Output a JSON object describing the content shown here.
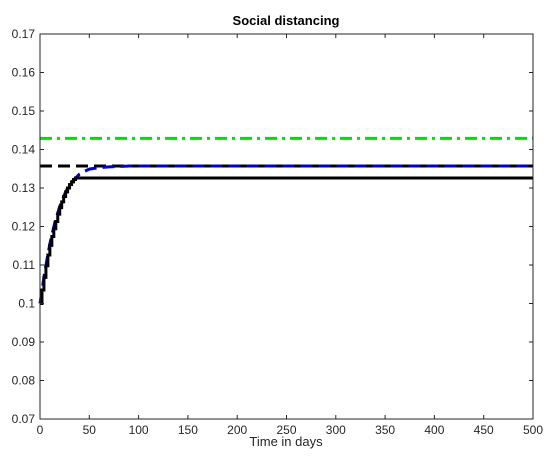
{
  "chart_data": {
    "type": "line",
    "title": "Social distancing",
    "xlabel": "Time in days",
    "ylabel": "",
    "xlim": [
      0,
      500
    ],
    "ylim": [
      0.07,
      0.17
    ],
    "xticks": [
      0,
      50,
      100,
      150,
      200,
      250,
      300,
      350,
      400,
      450,
      500
    ],
    "yticks": [
      0.07,
      0.08,
      0.09,
      0.1,
      0.11,
      0.12,
      0.13,
      0.14,
      0.15,
      0.16,
      0.17
    ],
    "xtick_labels": [
      "0",
      "50",
      "100",
      "150",
      "200",
      "250",
      "300",
      "350",
      "400",
      "450",
      "500"
    ],
    "ytick_labels": [
      "0.07",
      "0.08",
      "0.09",
      "0.1",
      "0.11",
      "0.12",
      "0.13",
      "0.14",
      "0.15",
      "0.16",
      "0.17"
    ],
    "grid": false,
    "legend": "none",
    "series": [
      {
        "color": "#00e000",
        "style": "dash-dot",
        "x": [
          0,
          500
        ],
        "y": [
          0.1429,
          0.1429
        ]
      },
      {
        "color": "#000000",
        "style": "dashed",
        "x": [
          0,
          500
        ],
        "y": [
          0.1357,
          0.1357
        ]
      },
      {
        "color": "#0000cc",
        "style": "dashed",
        "x": [
          0,
          5,
          10,
          15,
          20,
          25,
          30,
          35,
          40,
          45,
          50,
          60,
          70,
          80,
          90,
          100,
          150,
          200,
          300,
          400,
          500
        ],
        "y": [
          0.1,
          0.1085,
          0.1155,
          0.121,
          0.1252,
          0.1284,
          0.131,
          0.1323,
          0.1336,
          0.1343,
          0.1349,
          0.1353,
          0.1355,
          0.1356,
          0.1357,
          0.1357,
          0.1357,
          0.1357,
          0.1357,
          0.1357,
          0.1357
        ]
      },
      {
        "color": "#000000",
        "style": "solid-step",
        "x": [
          0,
          2,
          4,
          6,
          8,
          10,
          12,
          14,
          16,
          18,
          20,
          22,
          24,
          26,
          28,
          30,
          32,
          34,
          36,
          500
        ],
        "y": [
          0.1,
          0.1035,
          0.1068,
          0.1098,
          0.1126,
          0.1151,
          0.1174,
          0.1194,
          0.1213,
          0.1232,
          0.1249,
          0.1264,
          0.1278,
          0.129,
          0.13,
          0.1309,
          0.1316,
          0.1322,
          0.1326,
          0.1326
        ]
      }
    ]
  }
}
